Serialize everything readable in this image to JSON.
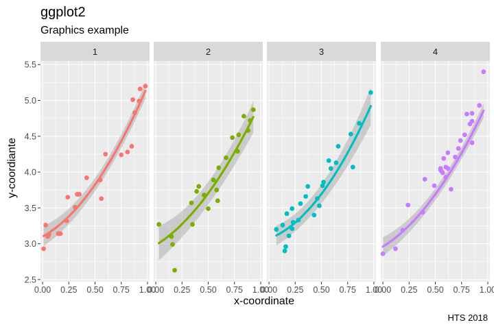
{
  "chart_data": {
    "type": "scatter",
    "title": "ggplot2",
    "subtitle": "Graphics example",
    "caption": "HTS 2018",
    "xlabel": "x-coordinate",
    "ylabel": "y-coordiante",
    "xlim": [
      -0.02,
      1.02
    ],
    "ylim": [
      2.47,
      5.55
    ],
    "x_ticks": [
      0,
      0.25,
      0.5,
      0.75,
      1
    ],
    "x_tick_labels": [
      "0.00",
      "0.25",
      "0.50",
      "0.75",
      "1.00"
    ],
    "y_ticks": [
      2.5,
      3.0,
      3.5,
      4.0,
      4.5,
      5.0,
      5.5
    ],
    "y_tick_labels": [
      "2.5",
      "3.0",
      "3.5",
      "4.0",
      "4.5",
      "5.0",
      "5.5"
    ],
    "grid": true,
    "background": "#ebebeb",
    "strip_background": "#d9d9d9",
    "smooth": "quadratic fit with confidence band",
    "panels": [
      {
        "label": "1",
        "color": "#f8766d",
        "points": [
          [
            0.01,
            2.93
          ],
          [
            0.03,
            3.26
          ],
          [
            0.05,
            3.1
          ],
          [
            0.06,
            3.13
          ],
          [
            0.15,
            3.14
          ],
          [
            0.17,
            3.14
          ],
          [
            0.23,
            3.32
          ],
          [
            0.24,
            3.65
          ],
          [
            0.31,
            3.51
          ],
          [
            0.33,
            3.69
          ],
          [
            0.35,
            3.69
          ],
          [
            0.42,
            3.92
          ],
          [
            0.55,
            3.89
          ],
          [
            0.56,
            3.63
          ],
          [
            0.6,
            4.25
          ],
          [
            0.75,
            4.24
          ],
          [
            0.81,
            4.28
          ],
          [
            0.85,
            4.36
          ],
          [
            0.86,
            5.01
          ],
          [
            0.88,
            4.83
          ],
          [
            0.92,
            4.99
          ],
          [
            0.93,
            5.16
          ],
          [
            0.98,
            5.2
          ]
        ],
        "fit": [
          3.1,
          0.8,
          1.3
        ],
        "band": [
          0.14,
          0.06,
          0.11
        ]
      },
      {
        "label": "2",
        "color": "#7cae00",
        "points": [
          [
            0.03,
            3.27
          ],
          [
            0.15,
            3.1
          ],
          [
            0.16,
            2.99
          ],
          [
            0.18,
            2.63
          ],
          [
            0.34,
            3.57
          ],
          [
            0.35,
            3.27
          ],
          [
            0.39,
            3.73
          ],
          [
            0.41,
            3.8
          ],
          [
            0.46,
            3.68
          ],
          [
            0.5,
            3.49
          ],
          [
            0.55,
            3.89
          ],
          [
            0.58,
            3.75
          ],
          [
            0.59,
            3.6
          ],
          [
            0.6,
            4.06
          ],
          [
            0.67,
            4.2
          ],
          [
            0.73,
            4.48
          ],
          [
            0.78,
            4.29
          ],
          [
            0.79,
            4.52
          ],
          [
            0.84,
            4.78
          ],
          [
            0.88,
            4.58
          ],
          [
            0.9,
            4.72
          ],
          [
            0.93,
            4.87
          ]
        ],
        "fit": [
          2.98,
          0.9,
          1.1
        ],
        "band": [
          0.24,
          0.09,
          0.22
        ]
      },
      {
        "label": "3",
        "color": "#00bfc4",
        "points": [
          [
            0.07,
            3.2
          ],
          [
            0.13,
            3.26
          ],
          [
            0.15,
            2.9
          ],
          [
            0.16,
            2.96
          ],
          [
            0.17,
            3.42
          ],
          [
            0.19,
            3.11
          ],
          [
            0.22,
            3.21
          ],
          [
            0.22,
            3.49
          ],
          [
            0.23,
            3.3
          ],
          [
            0.28,
            3.33
          ],
          [
            0.3,
            3.56
          ],
          [
            0.35,
            3.66
          ],
          [
            0.37,
            3.8
          ],
          [
            0.43,
            3.4
          ],
          [
            0.46,
            3.63
          ],
          [
            0.48,
            3.53
          ],
          [
            0.51,
            3.81
          ],
          [
            0.52,
            3.86
          ],
          [
            0.57,
            4.16
          ],
          [
            0.59,
            4.05
          ],
          [
            0.64,
            4.13
          ],
          [
            0.66,
            4.36
          ],
          [
            0.78,
            4.53
          ],
          [
            0.8,
            4.07
          ],
          [
            0.86,
            4.68
          ],
          [
            0.97,
            5.11
          ]
        ],
        "fit": [
          3.07,
          0.55,
          1.4
        ],
        "band": [
          0.14,
          0.07,
          0.26
        ]
      },
      {
        "label": "4",
        "color": "#c77cff",
        "points": [
          [
            0.0,
            2.86
          ],
          [
            0.12,
            2.93
          ],
          [
            0.19,
            3.19
          ],
          [
            0.24,
            3.54
          ],
          [
            0.38,
            3.44
          ],
          [
            0.4,
            3.9
          ],
          [
            0.49,
            3.81
          ],
          [
            0.55,
            4.03
          ],
          [
            0.55,
            4.05
          ],
          [
            0.56,
            4.01
          ],
          [
            0.57,
            3.99
          ],
          [
            0.58,
            4.19
          ],
          [
            0.6,
            3.93
          ],
          [
            0.6,
            4.07
          ],
          [
            0.62,
            4.05
          ],
          [
            0.62,
            4.27
          ],
          [
            0.65,
            3.76
          ],
          [
            0.69,
            4.21
          ],
          [
            0.72,
            4.33
          ],
          [
            0.74,
            4.44
          ],
          [
            0.78,
            4.52
          ],
          [
            0.8,
            4.81
          ],
          [
            0.83,
            4.67
          ],
          [
            0.85,
            4.71
          ],
          [
            0.85,
            4.82
          ],
          [
            0.85,
            4.41
          ],
          [
            0.92,
            4.93
          ],
          [
            0.96,
            5.4
          ]
        ],
        "fit": [
          2.96,
          0.9,
          1.12
        ],
        "band": [
          0.13,
          0.05,
          0.1
        ]
      }
    ]
  }
}
